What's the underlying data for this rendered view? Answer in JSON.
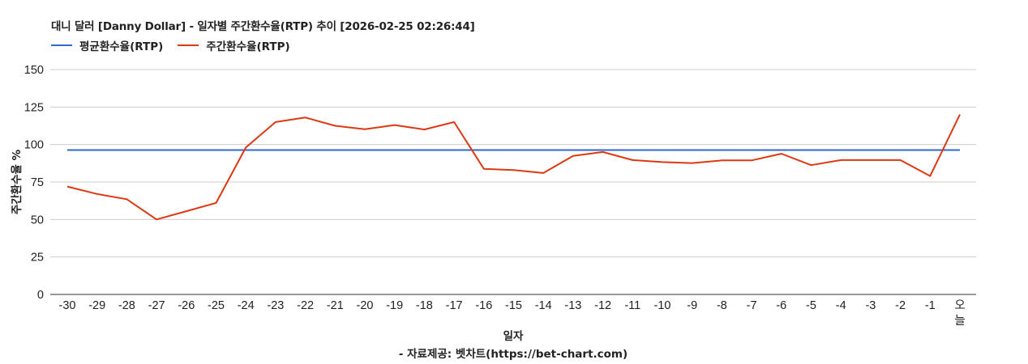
{
  "chart_data": {
    "type": "line",
    "title": "대니 달러 [Danny Dollar] - 일자별 주간환수율(RTP) 추이 [2026-02-25 02:26:44]",
    "xlabel": "일자",
    "ylabel": "주간환수율 %",
    "source": "- 자료제공: 벳차트(https://bet-chart.com)",
    "ylim": [
      0,
      150
    ],
    "yticks": [
      0,
      25,
      50,
      75,
      100,
      125,
      150
    ],
    "grid": true,
    "legend_position": "top-left",
    "categories": [
      "-30",
      "-29",
      "-28",
      "-27",
      "-26",
      "-25",
      "-24",
      "-23",
      "-22",
      "-21",
      "-20",
      "-19",
      "-18",
      "-17",
      "-16",
      "-15",
      "-14",
      "-13",
      "-12",
      "-11",
      "-10",
      "-9",
      "-8",
      "-7",
      "-6",
      "-5",
      "-4",
      "-3",
      "-2",
      "-1",
      "오늘"
    ],
    "series": [
      {
        "name": "평균환수율(RTP)",
        "color": "#3366cc",
        "values": [
          96.3,
          96.3,
          96.3,
          96.3,
          96.3,
          96.3,
          96.3,
          96.3,
          96.3,
          96.3,
          96.3,
          96.3,
          96.3,
          96.3,
          96.3,
          96.3,
          96.3,
          96.3,
          96.3,
          96.3,
          96.3,
          96.3,
          96.3,
          96.3,
          96.3,
          96.3,
          96.3,
          96.3,
          96.3,
          96.3,
          96.3
        ]
      },
      {
        "name": "주간환수율(RTP)",
        "color": "#dc3912",
        "values": [
          72,
          67,
          63.5,
          50,
          55.5,
          61,
          98,
          115,
          118,
          112.5,
          110.2,
          113,
          110,
          115,
          83.8,
          83,
          81,
          92.4,
          95,
          89.6,
          88.3,
          87.6,
          89.4,
          89.4,
          93.9,
          86.2,
          89.6,
          89.6,
          89.6,
          79,
          120
        ]
      }
    ]
  }
}
